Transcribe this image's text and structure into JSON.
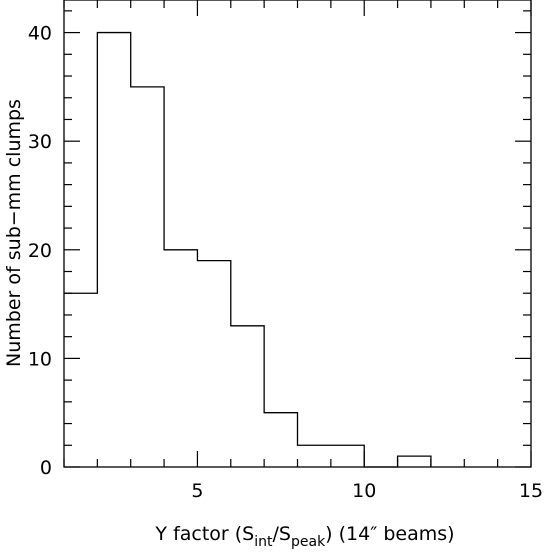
{
  "chart_data": {
    "type": "bar",
    "style": "histogram-step",
    "title": "",
    "bin_edges": [
      1,
      2,
      3,
      4,
      5,
      6,
      7,
      8,
      9,
      10,
      11,
      12
    ],
    "values": [
      16,
      40,
      35,
      20,
      19,
      13,
      5,
      2,
      2,
      0,
      1
    ],
    "xlim": [
      1,
      15
    ],
    "ylim": [
      0,
      43
    ],
    "xticks": [
      5,
      10,
      15
    ],
    "yticks": [
      0,
      10,
      20,
      30,
      40
    ],
    "xlabel": {
      "prefix": "Y factor  (S",
      "sub1": "int",
      "mid": "/S",
      "sub2": "peak",
      "suffix": ")   (14″ beams)"
    },
    "ylabel": "Number of sub−mm clumps",
    "grid": false,
    "colors": {
      "line": "#000000",
      "background": "#ffffff"
    }
  }
}
